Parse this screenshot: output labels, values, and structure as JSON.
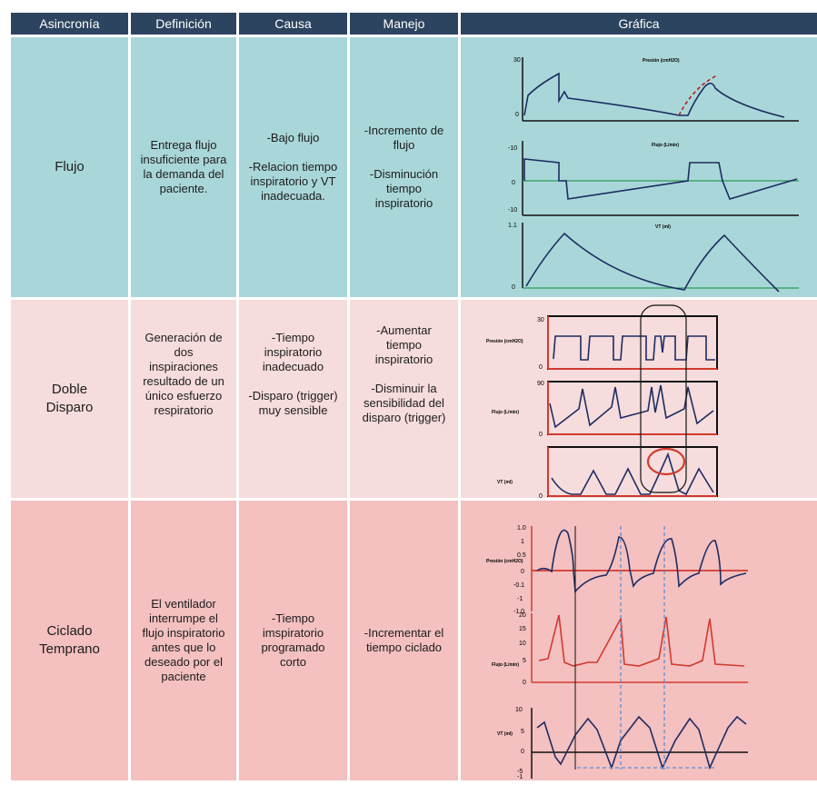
{
  "headers": [
    "Asincronía",
    "Definición",
    "Causa",
    "Manejo",
    "Gráfica"
  ],
  "rows": [
    {
      "name": "Flujo",
      "definicion": [
        "Entrega flujo",
        "insuficiente para",
        "la demanda del",
        "paciente."
      ],
      "causa": [
        [
          "-Bajo flujo"
        ],
        [
          "-Relacion tiempo",
          "inspiratorio y VT",
          "inadecuada."
        ]
      ],
      "manejo": [
        [
          "-Incremento de",
          "flujo"
        ],
        [
          "-Disminución",
          "tiempo",
          "inspiratorio"
        ]
      ],
      "graph": {
        "pressure_label": "Presión (cmH2O)",
        "p_max": "30",
        "p_min": "0",
        "flow_label": "Flujo (L/min)",
        "f_top": "-10",
        "f_mid": "0",
        "f_bot": "-10",
        "vt_label": "VT (ml)",
        "v_max": "1.1",
        "v_min": "0"
      }
    },
    {
      "name": [
        "Doble",
        "Disparo"
      ],
      "definicion": [
        "Generación de",
        "dos",
        "inspiraciones",
        "resultado de un",
        "único esfuerzo",
        "respiratorio"
      ],
      "causa": [
        [
          "-Tiempo",
          "inspiratorio",
          "inadecuado"
        ],
        [
          "-Disparo (trigger)",
          "muy sensible"
        ]
      ],
      "manejo": [
        [
          "-Aumentar",
          "tiempo",
          "inspiratorio"
        ],
        [
          "-Disminuir la",
          "sensibilidad del",
          "disparo (trigger)"
        ]
      ],
      "graph": {
        "pressure_label": "Presión (cmH2O)",
        "p_max": "30",
        "p_min": "0",
        "flow_label": "Flujo (L/min)",
        "f_max": "90",
        "f_min": "0",
        "vt_label": "VT (ml)",
        "v_min": "0"
      }
    },
    {
      "name": [
        "Ciclado",
        "Temprano"
      ],
      "definicion": [
        "El ventilador",
        "interrumpe el",
        "flujo inspiratorio",
        "antes que lo",
        "deseado por el",
        "paciente"
      ],
      "causa": [
        [
          "-Tiempo",
          "imspiratorio",
          "programado",
          "corto"
        ]
      ],
      "manejo": [
        [
          "-Incrementar el",
          "tiempo ciclado"
        ]
      ],
      "graph": {
        "pressure_label": "Presión (cmH2O)",
        "p_ticks": [
          "1.0",
          "1",
          "0.5",
          "0",
          "-0.1",
          "-1",
          "-1.0"
        ],
        "flow_label": "Flujo (L/min)",
        "f_ticks": [
          "20",
          "15",
          "10",
          "5",
          "0"
        ],
        "vt_label": "VT (ml)",
        "v_ticks": [
          "10",
          "5",
          "0",
          "-5",
          "-1"
        ]
      }
    }
  ]
}
